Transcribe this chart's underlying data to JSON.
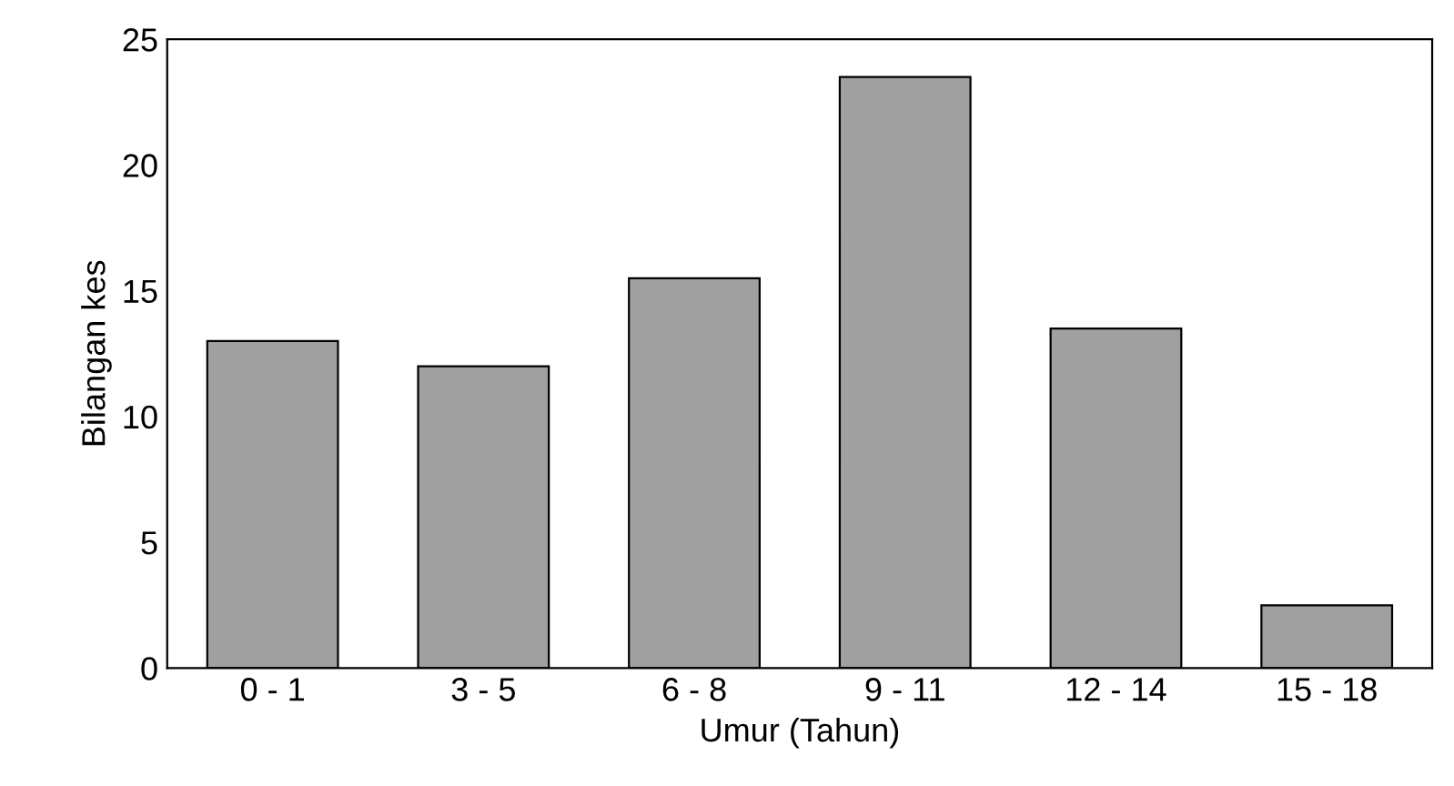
{
  "chart_data": {
    "type": "bar",
    "xlabel": "Umur (Tahun)",
    "ylabel": "Bilangan kes",
    "categories": [
      "0 - 1",
      "3 - 5",
      "6 - 8",
      "9 - 11",
      "12 - 14",
      "15 - 18"
    ],
    "values": [
      13,
      12,
      15.5,
      23.5,
      13.5,
      2.5
    ],
    "color": "#a0a0a0",
    "ylim": [
      0,
      25
    ],
    "yticks": [
      0,
      5,
      10,
      15,
      20,
      25
    ],
    "grid": false
  }
}
